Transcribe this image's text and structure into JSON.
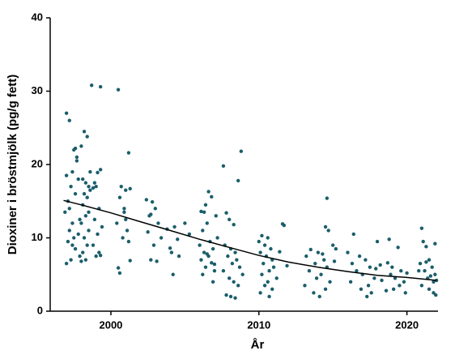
{
  "chart_data": {
    "type": "scatter",
    "xlabel": "År",
    "ylabel": "Dioxiner i bröstmjölk (pg/g fett)",
    "xlim": [
      1995.9,
      2022.1
    ],
    "ylim": [
      0,
      40
    ],
    "xticks": [
      2000,
      2010,
      2020
    ],
    "yticks": [
      0,
      10,
      20,
      30,
      40
    ],
    "series": [
      {
        "type": "scatter",
        "color": "#1b5e6b",
        "x": [
          1997.0,
          1997.2,
          1997.0,
          1997.3,
          1997.1,
          1996.9,
          1997.4,
          1997.2,
          1997.5,
          1997.1,
          1997.6,
          1997.3,
          1997.0,
          1997.5,
          1997.7,
          1997.4,
          1997.8,
          1997.6,
          1997.2,
          1997.9,
          1997.8,
          1997.4,
          1997.9,
          1997.6,
          1997.7,
          1998.2,
          1998.4,
          1998.0,
          1998.1,
          1998.3,
          1998.5,
          1998.2,
          1998.4,
          1998.1,
          1998.3,
          1998.0,
          1998.5,
          1998.2,
          1998.4,
          1998.1,
          1998.3,
          1998.0,
          1998.6,
          1998.6,
          1998.5,
          1998.7,
          1999.3,
          1999.3,
          1999.1,
          1998.9,
          1999.0,
          1998.8,
          1999.2,
          1998.9,
          1999.4,
          1999.1,
          1998.8,
          1999.2,
          1999.0,
          1999.3,
          2000.5,
          2000.7,
          2001.0,
          2000.6,
          2000.9,
          2000.4,
          2001.1,
          2000.8,
          2001.2,
          2000.6,
          2001.2,
          2001.3,
          2000.9,
          2001.0,
          2001.3,
          2000.5,
          2002.4,
          2002.8,
          2003.0,
          2002.6,
          2003.2,
          2002.5,
          2003.4,
          2002.9,
          2004.1,
          2002.7,
          2003.1,
          2002.7,
          2004.3,
          2003.8,
          2004.5,
          2004.0,
          2004.6,
          2004.2,
          2005.0,
          2005.3,
          2006.6,
          2006.8,
          2006.4,
          2006.1,
          2006.3,
          2006.5,
          2006.2,
          2006.7,
          2006.0,
          2006.9,
          2006.3,
          2006.6,
          2006.1,
          2006.8,
          2006.4,
          2007.0,
          2006.2,
          2006.9,
          2007.1,
          2007.2,
          2006.5,
          2007.0,
          2007.6,
          2008.6,
          2008.8,
          2007.8,
          2008.0,
          2008.3,
          2007.7,
          2008.1,
          2008.4,
          2007.9,
          2008.5,
          2008.2,
          2008.7,
          2007.6,
          2008.9,
          2008.0,
          2008.3,
          2008.6,
          2007.8,
          2008.1,
          2008.4,
          2010.2,
          2010.6,
          2010.0,
          2010.4,
          2010.8,
          2010.1,
          2010.5,
          2010.9,
          2010.3,
          2011.0,
          2010.7,
          2010.2,
          2011.2,
          2010.6,
          2010.4,
          2010.9,
          2010.1,
          2010.7,
          2011.6,
          2011.7,
          2011.4,
          2011.9,
          2013.5,
          2014.0,
          2013.2,
          2014.4,
          2013.8,
          2014.6,
          2013.4,
          2014.2,
          2013.9,
          2014.8,
          2013.1,
          2014.5,
          2013.7,
          2014.1,
          2014.6,
          2014.5,
          2014.7,
          2015.0,
          2015.2,
          2014.3,
          2015.1,
          2016.4,
          2016.0,
          2016.8,
          2017.2,
          2016.3,
          2017.5,
          2016.6,
          2017.0,
          2017.8,
          2016.2,
          2017.4,
          2016.9,
          2017.6,
          2017.3,
          2018.0,
          2018.2,
          2017.9,
          2018.3,
          2018.8,
          2019.4,
          2018.7,
          2019.0,
          2019.6,
          2018.9,
          2019.2,
          2019.8,
          2019.5,
          2019.1,
          2019.9,
          2018.6,
          2020.0,
          2021.0,
          2021.1,
          2021.3,
          2021.5,
          2020.9,
          2021.7,
          2021.2,
          2021.9,
          2021.6,
          2021.4,
          2022.0,
          2021.8,
          2021.0,
          2021.5,
          2021.8,
          2021.95,
          2021.9,
          2021.3,
          2020.8
        ],
        "values": [
          27,
          26,
          18.5,
          17,
          15,
          13.5,
          12,
          11,
          10,
          9.5,
          8.5,
          7,
          6.5,
          22,
          21,
          19,
          18,
          16,
          14,
          12.5,
          10.5,
          9,
          7.5,
          22.2,
          20.5,
          24.5,
          23.8,
          22.5,
          18,
          17.5,
          17,
          16,
          15.5,
          14.5,
          13,
          12,
          11,
          10,
          9,
          8,
          7,
          6.8,
          19,
          16.5,
          13.5,
          30.8,
          30.6,
          19.3,
          18.9,
          17.5,
          17,
          16.8,
          14,
          12.5,
          11.5,
          10.5,
          9,
          8,
          7.5,
          7.6,
          30.2,
          17,
          16.5,
          15.5,
          14,
          12,
          11,
          10,
          9.5,
          5.2,
          21.6,
          16.7,
          13.5,
          12.5,
          6.9,
          5.9,
          15.2,
          14.9,
          14,
          13,
          12,
          10.8,
          10,
          9,
          8,
          7,
          6.8,
          13.2,
          11.5,
          11.2,
          9.8,
          8.6,
          7.5,
          5,
          12,
          10.5,
          16.3,
          15.6,
          14.5,
          13.6,
          13.5,
          12,
          11,
          9.5,
          9,
          8.5,
          8,
          7.5,
          7,
          6.6,
          6,
          5.5,
          5,
          4,
          13,
          10,
          7.8,
          6.4,
          19.8,
          17.8,
          21.8,
          13.4,
          12.5,
          11.8,
          9,
          8.5,
          8,
          7.5,
          7,
          6.5,
          6,
          5.5,
          5,
          4.5,
          4,
          3.5,
          2.2,
          2,
          1.8,
          10.3,
          10,
          9.5,
          9,
          8.5,
          8,
          7.5,
          7,
          6.5,
          6,
          5.5,
          5,
          4.5,
          4,
          3.5,
          3,
          2.5,
          2,
          11.9,
          11.7,
          8.1,
          6.2,
          8.4,
          8,
          7.5,
          7,
          6.5,
          6,
          5.5,
          5,
          4.5,
          4,
          3.5,
          3,
          2.5,
          2,
          15.4,
          11.5,
          11,
          9,
          8.5,
          7.8,
          6.8,
          10.5,
          8,
          7.5,
          7,
          6.5,
          6,
          5.5,
          5,
          4.5,
          4,
          3.5,
          3,
          2.5,
          2,
          9.5,
          6.3,
          5.8,
          4.2,
          9.8,
          8.7,
          6.6,
          6,
          5.5,
          5,
          4.5,
          4,
          3.5,
          3,
          2.5,
          2.8,
          5.2,
          11.3,
          9.5,
          8.8,
          7,
          6.5,
          6,
          5.5,
          5,
          4.8,
          4.5,
          4.2,
          4,
          3.5,
          3,
          2.5,
          2.2,
          9.2,
          6.7,
          5.5
        ]
      },
      {
        "type": "line",
        "color": "#000000",
        "x": [
          1996.8,
          1998,
          2000,
          2002,
          2004,
          2006,
          2008,
          2010,
          2012,
          2014,
          2016,
          2018,
          2020,
          2022
        ],
        "values": [
          15.1,
          14.5,
          13.4,
          12.2,
          11.0,
          9.8,
          8.7,
          7.6,
          6.7,
          6.0,
          5.4,
          4.9,
          4.6,
          4.2
        ]
      }
    ]
  }
}
